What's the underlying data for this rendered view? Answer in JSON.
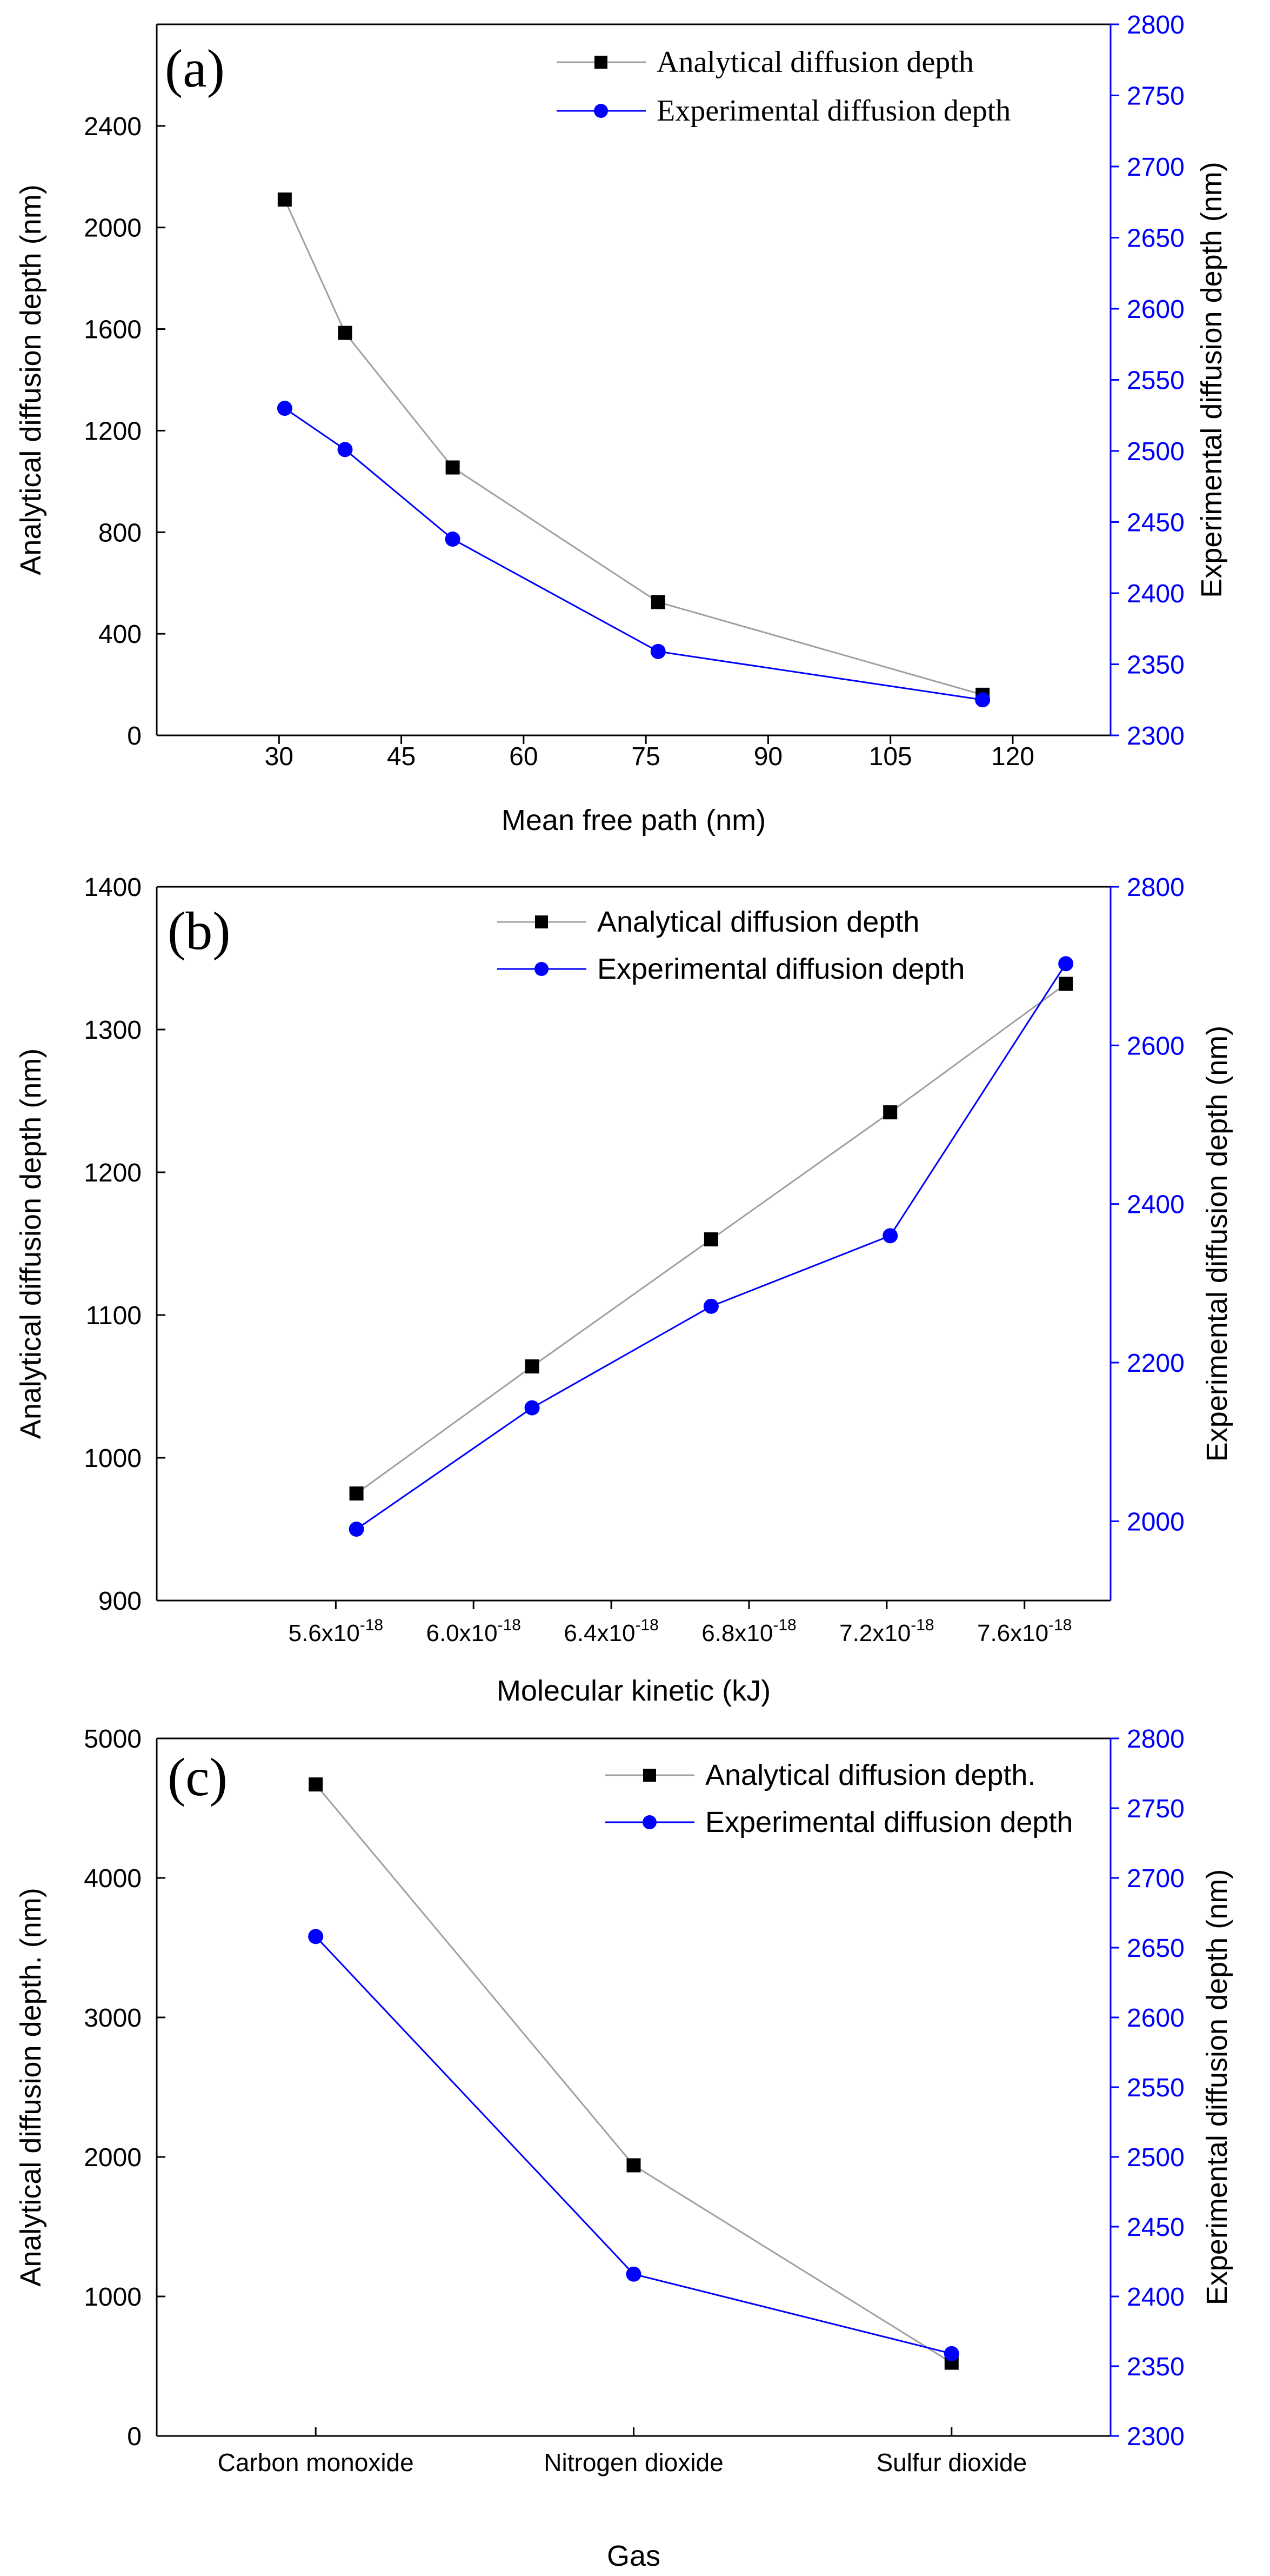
{
  "colors": {
    "analytical": "#a0a0a0",
    "analytical_marker": "#000000",
    "experimental": "#0000ff",
    "axis": "#000000",
    "right_axis": "#0000ff"
  },
  "chart_data": [
    {
      "type": "line",
      "panel_label": "(a)",
      "x": [
        30.7,
        38.1,
        51.3,
        76.5,
        116.3
      ],
      "series": [
        {
          "name": "Analytical diffusion depth",
          "axis": "left",
          "marker": "square",
          "values": [
            2110,
            1585,
            1055,
            525,
            160
          ]
        },
        {
          "name": "Experimental diffusion depth",
          "axis": "right",
          "marker": "circle",
          "values": [
            2530,
            2501,
            2438,
            2359,
            2325
          ]
        }
      ],
      "xlabel": "Mean free path (nm)",
      "ylabel": "Analytical  diffusion depth (nm)",
      "y2label": "Experimental  diffusion depth (nm)",
      "xlim": [
        15,
        132
      ],
      "ylim": [
        0,
        2800
      ],
      "y2lim": [
        2300,
        2800
      ],
      "xticks": [
        30,
        45,
        60,
        75,
        90,
        105,
        120
      ],
      "xtick_labels": [
        "30",
        "45",
        "60",
        "75",
        "90",
        "105",
        "120"
      ],
      "yticks": [
        0,
        400,
        800,
        1200,
        1600,
        2000,
        2400
      ],
      "ytick_labels": [
        "0",
        "400",
        "800",
        "1200",
        "1600",
        "2000",
        "2400"
      ],
      "y2ticks": [
        2300,
        2350,
        2400,
        2450,
        2500,
        2550,
        2600,
        2650,
        2700,
        2750,
        2800
      ],
      "y2tick_labels": [
        "2300",
        "2350",
        "2400",
        "2450",
        "2500",
        "2550",
        "2600",
        "2650",
        "2700",
        "2750",
        "2800"
      ],
      "legend_position": "top-right"
    },
    {
      "type": "line",
      "panel_label": "(b)",
      "x": [
        5.66e-18,
        6.17e-18,
        6.69e-18,
        7.21e-18,
        7.72e-18
      ],
      "series": [
        {
          "name": "Analytical diffusion depth",
          "axis": "left",
          "marker": "square",
          "values": [
            975,
            1064,
            1153,
            1242,
            1332
          ]
        },
        {
          "name": "Experimental  diffusion depth",
          "axis": "right",
          "marker": "circle",
          "values": [
            1990,
            2143,
            2271,
            2360,
            2703
          ]
        }
      ],
      "xlabel": "Molecular kinetic (kJ)",
      "ylabel": "Analytical  diffusion depth (nm)",
      "y2label": "Experimental  diffusion depth (nm)",
      "xlim": [
        5.08e-18,
        7.85e-18
      ],
      "ylim": [
        900,
        1400
      ],
      "y2lim": [
        1900,
        2800
      ],
      "xticks": [
        5.6e-18,
        6e-18,
        6.4e-18,
        6.8e-18,
        7.2e-18,
        7.6e-18
      ],
      "xtick_mantissas": [
        "5.6x10",
        "6.0x10",
        "6.4x10",
        "6.8x10",
        "7.2x10",
        "7.6x10"
      ],
      "xtick_exponent": "-18",
      "yticks": [
        900,
        1000,
        1100,
        1200,
        1300,
        1400
      ],
      "ytick_labels": [
        "900",
        "1000",
        "1100",
        "1200",
        "1300",
        "1400"
      ],
      "y2ticks": [
        2000,
        2200,
        2400,
        2600,
        2800
      ],
      "y2tick_labels": [
        "2000",
        "2200",
        "2400",
        "2600",
        "2800"
      ],
      "legend_position": "top-center"
    },
    {
      "type": "line",
      "panel_label": "(c)",
      "categories": [
        "Carbon monoxide",
        "Nitrogen dioxide",
        "Sulfur dioxide"
      ],
      "series": [
        {
          "name": "Analytical diffusion depth.",
          "axis": "left",
          "marker": "square",
          "values": [
            4670,
            1940,
            525
          ]
        },
        {
          "name": "Experimental diffusion depth",
          "axis": "right",
          "marker": "circle",
          "values": [
            2658,
            2416,
            2359
          ]
        }
      ],
      "xlabel": "Gas",
      "ylabel": "Analytical diffusion depth. (nm)",
      "y2label": "Experimental diffusion depth (nm)",
      "ylim": [
        0,
        5000
      ],
      "y2lim": [
        2300,
        2800
      ],
      "yticks": [
        0,
        1000,
        2000,
        3000,
        4000,
        5000
      ],
      "ytick_labels": [
        "0",
        "1000",
        "2000",
        "3000",
        "4000",
        "5000"
      ],
      "y2ticks": [
        2300,
        2350,
        2400,
        2450,
        2500,
        2550,
        2600,
        2650,
        2700,
        2750,
        2800
      ],
      "y2tick_labels": [
        "2300",
        "2350",
        "2400",
        "2450",
        "2500",
        "2550",
        "2600",
        "2650",
        "2700",
        "2750",
        "2800"
      ],
      "legend_position": "top-right"
    }
  ]
}
